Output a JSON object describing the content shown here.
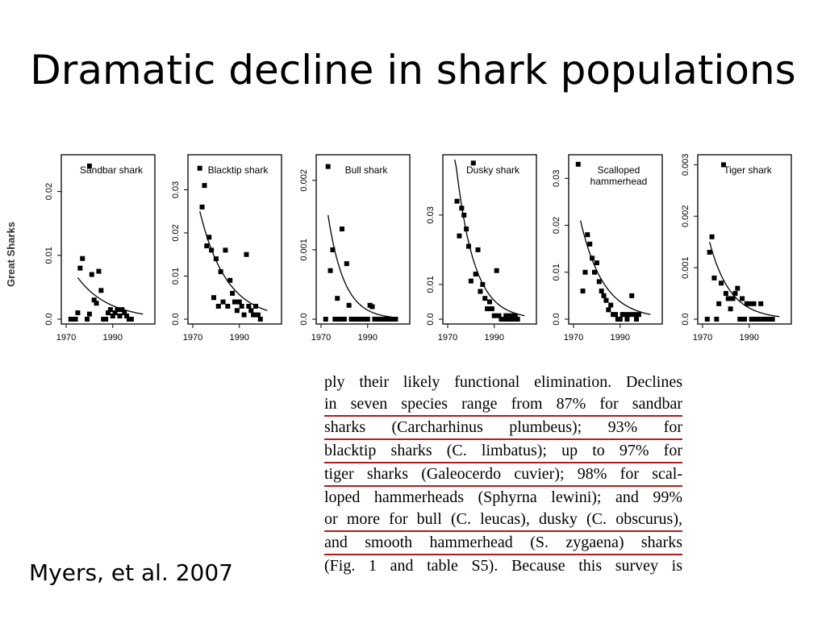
{
  "slide": {
    "title": "Dramatic decline in shark populations",
    "citation": "Myers, et al. 2007"
  },
  "y_group_label": "Great Sharks",
  "excerpt": {
    "lines": [
      "ply their likely functional elimination. Declines",
      "in seven species range from 87% for sandbar",
      "sharks (Carcharhinus plumbeus); 93% for",
      "blacktip sharks (C. limbatus); up to 97% for",
      "tiger sharks (Galeocerdo cuvier); 98% for scal-",
      "loped hammerheads (Sphyrna lewini); and 99%",
      "or more for bull (C. leucas), dusky (C. obscurus),",
      "and smooth hammerhead (S. zygaena) sharks",
      "(Fig. 1 and table S5). Because this survey is"
    ],
    "underline_color": "#b01c1c"
  },
  "chart_data": [
    {
      "type": "scatter",
      "title": "Sandbar shark",
      "xlim": [
        1970,
        2006
      ],
      "ylim": [
        0,
        0.025
      ],
      "xticks": [
        1970,
        1990
      ],
      "yticks": [
        0.0,
        0.01,
        0.02
      ],
      "ytick_labels": [
        "0.0",
        "0.01",
        "0.02"
      ],
      "points": [
        [
          1972,
          0
        ],
        [
          1973,
          0
        ],
        [
          1974,
          0
        ],
        [
          1975,
          0.001
        ],
        [
          1976,
          0.008
        ],
        [
          1977,
          0.0095
        ],
        [
          1979,
          0
        ],
        [
          1980,
          0.0008
        ],
        [
          1981,
          0.007
        ],
        [
          1982,
          0.003
        ],
        [
          1983,
          0.0025
        ],
        [
          1984,
          0.0075
        ],
        [
          1985,
          0.0045
        ],
        [
          1986,
          0
        ],
        [
          1987,
          0
        ],
        [
          1988,
          0.001
        ],
        [
          1989,
          0.0015
        ],
        [
          1990,
          0.0005
        ],
        [
          1991,
          0.001
        ],
        [
          1992,
          0.0015
        ],
        [
          1993,
          0.0005
        ],
        [
          1994,
          0.0015
        ],
        [
          1995,
          0.001
        ],
        [
          1996,
          0.0005
        ],
        [
          1997,
          0
        ],
        [
          1998,
          0
        ],
        [
          1980,
          0.024
        ]
      ],
      "fit": {
        "x0": 1975,
        "x1": 2003,
        "y0": 0.0065,
        "y1": 0.0008
      }
    },
    {
      "type": "scatter",
      "title": "Blacktip shark",
      "xlim": [
        1970,
        2006
      ],
      "ylim": [
        0,
        0.037
      ],
      "xticks": [
        1970,
        1990
      ],
      "yticks": [
        0.0,
        0.01,
        0.02,
        0.03
      ],
      "ytick_labels": [
        "0.0",
        "0.01",
        "0.02",
        "0.03"
      ],
      "points": [
        [
          1973,
          0.035
        ],
        [
          1974,
          0.026
        ],
        [
          1975,
          0.031
        ],
        [
          1976,
          0.017
        ],
        [
          1977,
          0.019
        ],
        [
          1978,
          0.016
        ],
        [
          1979,
          0.005
        ],
        [
          1980,
          0.014
        ],
        [
          1981,
          0.003
        ],
        [
          1982,
          0.011
        ],
        [
          1983,
          0.004
        ],
        [
          1984,
          0.016
        ],
        [
          1985,
          0.003
        ],
        [
          1986,
          0.009
        ],
        [
          1987,
          0.006
        ],
        [
          1988,
          0.004
        ],
        [
          1989,
          0.002
        ],
        [
          1990,
          0.004
        ],
        [
          1991,
          0.003
        ],
        [
          1992,
          0.001
        ],
        [
          1993,
          0.015
        ],
        [
          1994,
          0.003
        ],
        [
          1995,
          0.002
        ],
        [
          1996,
          0.001
        ],
        [
          1997,
          0.003
        ],
        [
          1998,
          0.001
        ],
        [
          1999,
          0
        ]
      ],
      "fit": {
        "x0": 1973,
        "x1": 2002,
        "y0": 0.025,
        "y1": 0.002
      }
    },
    {
      "type": "scatter",
      "title": "Bull shark",
      "xlim": [
        1970,
        2006
      ],
      "ylim": [
        0,
        0.0023
      ],
      "xticks": [
        1970,
        1990
      ],
      "yticks": [
        0.0,
        0.001,
        0.002
      ],
      "ytick_labels": [
        "0.0",
        "0.001",
        "0.002"
      ],
      "points": [
        [
          1972,
          0
        ],
        [
          1973,
          0.0022
        ],
        [
          1974,
          0.0007
        ],
        [
          1975,
          0.001
        ],
        [
          1976,
          0
        ],
        [
          1977,
          0.0003
        ],
        [
          1978,
          0
        ],
        [
          1979,
          0.0013
        ],
        [
          1980,
          0
        ],
        [
          1981,
          0.0008
        ],
        [
          1982,
          0.0002
        ],
        [
          1983,
          0
        ],
        [
          1984,
          0
        ],
        [
          1985,
          0
        ],
        [
          1986,
          0
        ],
        [
          1987,
          0
        ],
        [
          1988,
          0
        ],
        [
          1989,
          0
        ],
        [
          1990,
          0
        ],
        [
          1991,
          0.0002
        ],
        [
          1992,
          0.00018
        ],
        [
          1993,
          0
        ],
        [
          1994,
          0
        ],
        [
          1995,
          0
        ],
        [
          1996,
          0
        ],
        [
          1997,
          0
        ],
        [
          1998,
          0
        ],
        [
          1999,
          0
        ],
        [
          2000,
          0
        ],
        [
          2001,
          0
        ],
        [
          2002,
          0
        ]
      ],
      "fit": {
        "x0": 1973,
        "x1": 2003,
        "y0": 0.0015,
        "y1": 2e-05
      }
    },
    {
      "type": "scatter",
      "title": "Dusky shark",
      "xlim": [
        1970,
        2006
      ],
      "ylim": [
        0,
        0.046
      ],
      "xticks": [
        1970,
        1990
      ],
      "yticks": [
        0.0,
        0.01,
        0.03
      ],
      "ytick_labels": [
        "0.0",
        "0.01",
        "0.03"
      ],
      "points": [
        [
          1974,
          0.034
        ],
        [
          1975,
          0.024
        ],
        [
          1976,
          0.032
        ],
        [
          1977,
          0.03
        ],
        [
          1978,
          0.026
        ],
        [
          1979,
          0.021
        ],
        [
          1980,
          0.011
        ],
        [
          1981,
          0.045
        ],
        [
          1982,
          0.013
        ],
        [
          1983,
          0.02
        ],
        [
          1984,
          0.008
        ],
        [
          1985,
          0.01
        ],
        [
          1986,
          0.006
        ],
        [
          1987,
          0.003
        ],
        [
          1988,
          0.005
        ],
        [
          1989,
          0.003
        ],
        [
          1990,
          0.001
        ],
        [
          1991,
          0.014
        ],
        [
          1992,
          0.001
        ],
        [
          1993,
          0
        ],
        [
          1994,
          0
        ],
        [
          1995,
          0.001
        ],
        [
          1996,
          0
        ],
        [
          1997,
          0.001
        ],
        [
          1998,
          0
        ],
        [
          1999,
          0.001
        ],
        [
          2000,
          0
        ]
      ],
      "fit": {
        "x0": 1973,
        "x1": 2003,
        "y0": 0.048,
        "y1": 0.001
      }
    },
    {
      "type": "scatter",
      "title": "Scalloped hammerhead",
      "xlim": [
        1970,
        2006
      ],
      "ylim": [
        0,
        0.034
      ],
      "xticks": [
        1970,
        1990
      ],
      "yticks": [
        0.0,
        0.01,
        0.02,
        0.03
      ],
      "ytick_labels": [
        "0.0",
        "0.01",
        "0.02",
        "0.03"
      ],
      "points": [
        [
          1972,
          0.033
        ],
        [
          1974,
          0.006
        ],
        [
          1975,
          0.01
        ],
        [
          1976,
          0.018
        ],
        [
          1977,
          0.016
        ],
        [
          1978,
          0.013
        ],
        [
          1979,
          0.01
        ],
        [
          1980,
          0.012
        ],
        [
          1981,
          0.008
        ],
        [
          1982,
          0.006
        ],
        [
          1983,
          0.005
        ],
        [
          1984,
          0.004
        ],
        [
          1985,
          0.002
        ],
        [
          1986,
          0.003
        ],
        [
          1987,
          0.001
        ],
        [
          1988,
          0.001
        ],
        [
          1989,
          0
        ],
        [
          1990,
          0
        ],
        [
          1991,
          0.001
        ],
        [
          1992,
          0.001
        ],
        [
          1993,
          0
        ],
        [
          1994,
          0.001
        ],
        [
          1995,
          0.005
        ],
        [
          1996,
          0.001
        ],
        [
          1997,
          0
        ],
        [
          1998,
          0.001
        ]
      ],
      "fit": {
        "x0": 1973,
        "x1": 2003,
        "y0": 0.021,
        "y1": 0.001
      }
    },
    {
      "type": "scatter",
      "title": "Tiger shark",
      "xlim": [
        1970,
        2006
      ],
      "ylim": [
        0,
        0.0031
      ],
      "xticks": [
        1970,
        1990
      ],
      "yticks": [
        0.0,
        0.001,
        0.002,
        0.003
      ],
      "ytick_labels": [
        "0.0",
        "0.001",
        "0.002",
        "0.003"
      ],
      "points": [
        [
          1972,
          0
        ],
        [
          1973,
          0.0013
        ],
        [
          1974,
          0.0016
        ],
        [
          1975,
          0.0008
        ],
        [
          1976,
          0
        ],
        [
          1977,
          0.0003
        ],
        [
          1978,
          0.0007
        ],
        [
          1979,
          0.003
        ],
        [
          1980,
          0.0005
        ],
        [
          1981,
          0.0004
        ],
        [
          1982,
          0.0002
        ],
        [
          1983,
          0.0004
        ],
        [
          1984,
          0.0005
        ],
        [
          1985,
          0.0006
        ],
        [
          1986,
          0
        ],
        [
          1987,
          0.0004
        ],
        [
          1988,
          0
        ],
        [
          1989,
          0.0003
        ],
        [
          1990,
          0.0003
        ],
        [
          1991,
          0
        ],
        [
          1992,
          0.0003
        ],
        [
          1993,
          0
        ],
        [
          1994,
          0
        ],
        [
          1995,
          0.0003
        ],
        [
          1996,
          0
        ],
        [
          1997,
          0
        ],
        [
          1998,
          0
        ],
        [
          1999,
          0
        ],
        [
          2000,
          0
        ]
      ],
      "fit": {
        "x0": 1973,
        "x1": 2003,
        "y0": 0.0015,
        "y1": 5e-05
      }
    }
  ]
}
